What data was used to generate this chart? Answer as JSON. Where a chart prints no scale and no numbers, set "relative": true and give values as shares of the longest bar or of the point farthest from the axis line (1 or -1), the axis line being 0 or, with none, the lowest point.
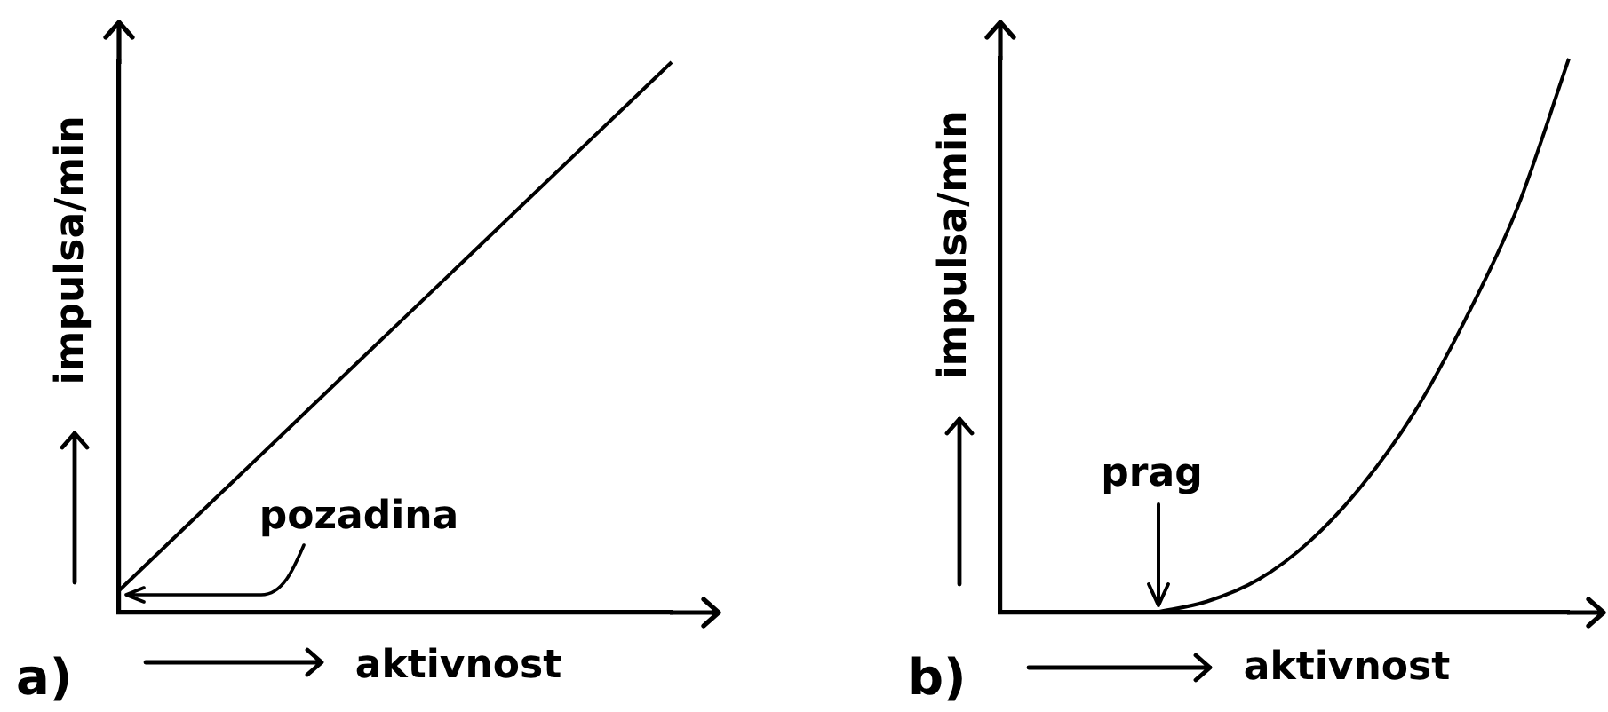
{
  "chart_data": [
    {
      "type": "line",
      "title": "a)",
      "xlabel": "aktivnost",
      "ylabel": "impulsa/min",
      "relative": true,
      "marker": "none",
      "color": "#000000",
      "categories": [
        null,
        null,
        null,
        null,
        null,
        null,
        null,
        null,
        null
      ],
      "values": [
        0.04,
        0.16,
        0.28,
        0.4,
        0.52,
        0.64,
        0.76,
        0.88,
        1
      ],
      "annotations": [
        "pozadina"
      ]
    },
    {
      "type": "line",
      "title": "b)",
      "xlabel": "aktivnost",
      "ylabel": "impulsa/min",
      "relative": true,
      "marker": "none",
      "color": "#000000",
      "categories": [
        null,
        null,
        null,
        null,
        null,
        null,
        null,
        null,
        null,
        null,
        null,
        null
      ],
      "values": [
        null,
        null,
        null,
        0,
        0.02,
        0.06,
        0.13,
        0.23,
        0.36,
        0.53,
        0.73,
        1
      ],
      "annotations": [
        {
          "text": "prag",
          "y": 0
        }
      ]
    }
  ]
}
